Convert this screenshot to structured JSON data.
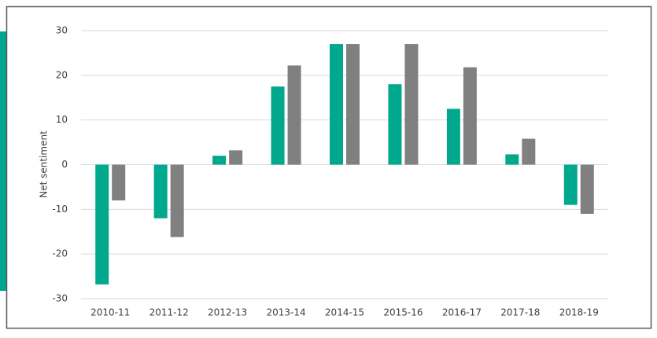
{
  "chart_data": {
    "type": "bar",
    "ylabel": "Net sentiment",
    "categories": [
      "2010-11",
      "2011-12",
      "2012-13",
      "2013-14",
      "2014-15",
      "2015-16",
      "2016-17",
      "2017-18",
      "2018-19"
    ],
    "series": [
      {
        "color": "#00a88e",
        "values": [
          -26.8,
          -12,
          2,
          17.5,
          27,
          18,
          12.5,
          2.3,
          -9
        ]
      },
      {
        "color": "#808080",
        "values": [
          -8,
          -16.2,
          3.2,
          22.2,
          27,
          27,
          21.8,
          5.8,
          -11
        ]
      }
    ],
    "ylim": [
      -30,
      30
    ],
    "yticks": [
      -30,
      -20,
      -10,
      0,
      10,
      20,
      30
    ],
    "grid": true
  }
}
